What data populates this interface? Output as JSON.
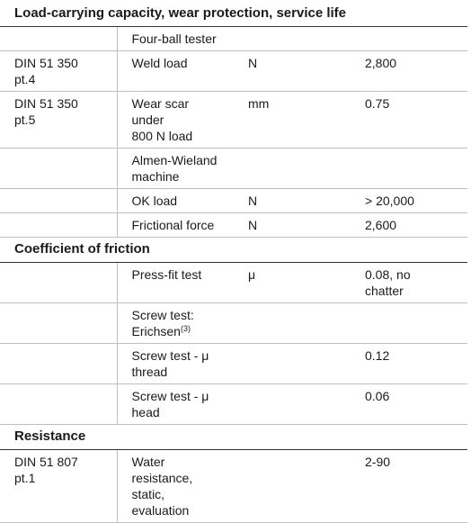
{
  "sections": {
    "load": {
      "heading": "Load-carrying capacity, wear protection, service life",
      "four_ball": {
        "label": "Four-ball tester"
      },
      "weld": {
        "std_line1": "DIN 51 350",
        "std_line2": "pt.4",
        "label": "Weld load",
        "unit": "N",
        "value": "2,800"
      },
      "wear": {
        "std_line1": "DIN 51 350",
        "std_line2": "pt.5",
        "label_line1": "Wear scar under",
        "label_line2": "800 N load",
        "unit": "mm",
        "value": "0.75"
      },
      "almen": {
        "label": "Almen-Wieland machine"
      },
      "ok_load": {
        "label": "OK load",
        "unit": "N",
        "value": "> 20,000"
      },
      "friction_force": {
        "label": "Frictional force",
        "unit": "N",
        "value": "2,600"
      }
    },
    "coefficient": {
      "heading": "Coefficient of friction",
      "press_fit": {
        "label": "Press-fit test",
        "unit": "μ",
        "value_line1": "0.08, no",
        "value_line2": "chatter"
      },
      "erichsen": {
        "label": "Screw test: Erichsen",
        "note": "(3)"
      },
      "thread": {
        "label": "Screw test - μ thread",
        "value": "0.12"
      },
      "head": {
        "label": "Screw test - μ head",
        "value": "0.06"
      }
    },
    "resistance": {
      "heading": "Resistance",
      "water": {
        "std_line1": "DIN 51 807",
        "std_line2": "pt.1",
        "label_line1": "Water resistance,",
        "label_line2": "static, evaluation",
        "value": "2-90"
      }
    }
  }
}
